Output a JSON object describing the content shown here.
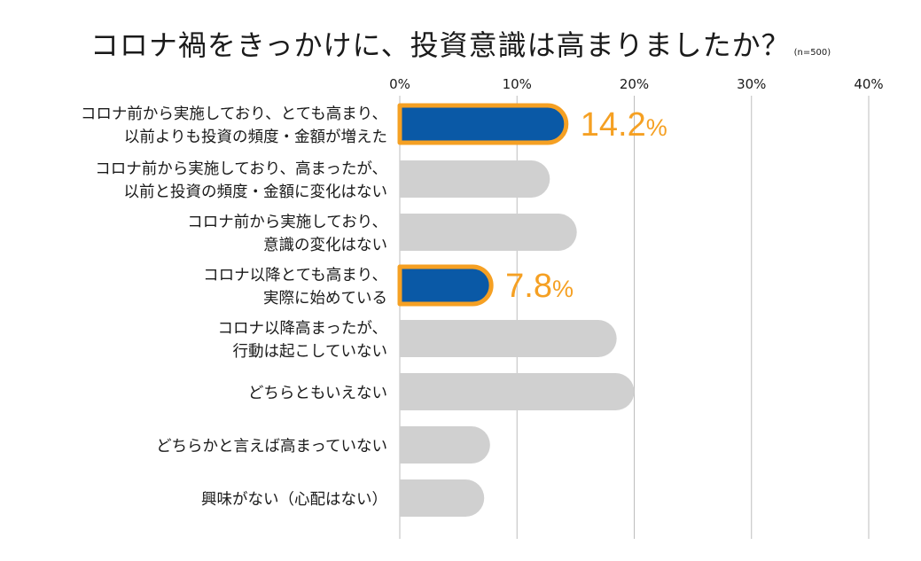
{
  "title": "コロナ禍をきっかけに、投資意識は高まりましたか？",
  "sample_note": "(n=500)",
  "colors": {
    "highlight_fill": "#0a59a6",
    "highlight_outline": "#f5a023",
    "bar_gray": "#d0d0d0",
    "grid": "#bdbdbd",
    "value_label": "#f5a023"
  },
  "chart_data": {
    "type": "bar",
    "orientation": "horizontal",
    "title": "コロナ禍をきっかけに、投資意識は高まりましたか？",
    "xlim": [
      0,
      40
    ],
    "xticks": [
      "0%",
      "10%",
      "20%",
      "30%",
      "40%"
    ],
    "grid": true,
    "categories": [
      [
        "コロナ前から実施しており、とても高まり、",
        "以前よりも投資の頻度・金額が増えた"
      ],
      [
        "コロナ前から実施しており、高まったが、",
        "以前と投資の頻度・金額に変化はない"
      ],
      [
        "コロナ前から実施しており、",
        "意識の変化はない"
      ],
      [
        "コロナ以降とても高まり、",
        "実際に始めている"
      ],
      [
        "コロナ以降高まったが、",
        "行動は起こしていない"
      ],
      [
        "どちらともいえない"
      ],
      [
        "どちらかと言えば高まっていない"
      ],
      [
        "興味がない（心配はない）"
      ]
    ],
    "values": [
      14.2,
      12.8,
      15.1,
      7.8,
      18.5,
      20.0,
      7.7,
      7.2
    ],
    "highlighted": [
      true,
      false,
      false,
      true,
      false,
      false,
      false,
      false
    ],
    "data_labels": [
      {
        "index": 0,
        "number": "14.2",
        "unit": "%"
      },
      {
        "index": 3,
        "number": "7.8",
        "unit": "%"
      }
    ]
  }
}
